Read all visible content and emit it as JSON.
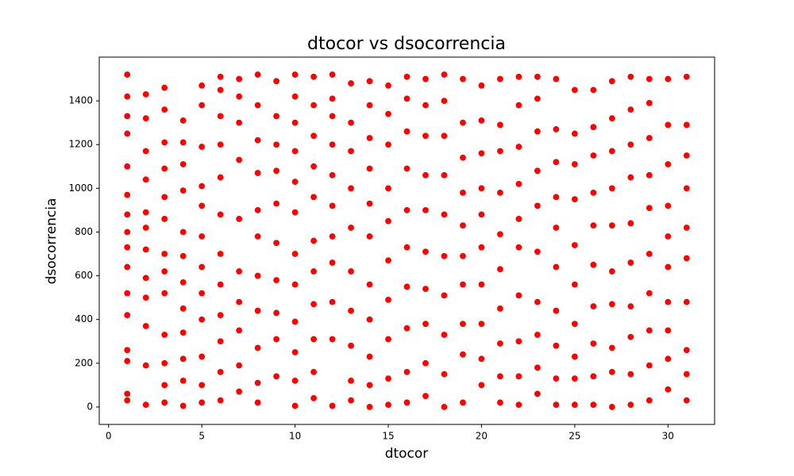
{
  "chart_data": {
    "type": "scatter",
    "title": "dtocor vs dsocorrencia",
    "x_label": "dtocor",
    "y_label": "dsocorrencia",
    "color": "#ff0000",
    "edgecolor": "#ffffff",
    "xlim": [
      -0.5,
      32.5
    ],
    "xticks": [
      0,
      5,
      10,
      15,
      20,
      25,
      30
    ],
    "ylim": [
      -80,
      1600
    ],
    "yticks": [
      0,
      200,
      400,
      600,
      800,
      1000,
      1200,
      1400
    ],
    "grid": false,
    "x": [
      1,
      1,
      1,
      1,
      1,
      1,
      1,
      1,
      1,
      1,
      1,
      1,
      1,
      1,
      1,
      1,
      2,
      2,
      2,
      2,
      2,
      2,
      2,
      2,
      2,
      2,
      2,
      2,
      3,
      3,
      3,
      3,
      3,
      3,
      3,
      3,
      3,
      3,
      3,
      3,
      3,
      4,
      4,
      4,
      4,
      4,
      4,
      4,
      4,
      4,
      4,
      4,
      4,
      5,
      5,
      5,
      5,
      5,
      5,
      5,
      5,
      5,
      5,
      5,
      5,
      6,
      6,
      6,
      6,
      6,
      6,
      6,
      6,
      6,
      6,
      6,
      6,
      7,
      7,
      7,
      7,
      7,
      7,
      7,
      7,
      7,
      7,
      8,
      8,
      8,
      8,
      8,
      8,
      8,
      8,
      8,
      8,
      8,
      9,
      9,
      9,
      9,
      9,
      9,
      9,
      9,
      9,
      9,
      10,
      10,
      10,
      10,
      10,
      10,
      10,
      10,
      10,
      10,
      10,
      10,
      11,
      11,
      11,
      11,
      11,
      11,
      11,
      11,
      11,
      11,
      11,
      12,
      12,
      12,
      12,
      12,
      12,
      12,
      12,
      12,
      12,
      12,
      13,
      13,
      13,
      13,
      13,
      13,
      13,
      13,
      13,
      13,
      14,
      14,
      14,
      14,
      14,
      14,
      14,
      14,
      14,
      14,
      14,
      15,
      15,
      15,
      15,
      15,
      15,
      15,
      15,
      15,
      15,
      16,
      16,
      16,
      16,
      16,
      16,
      16,
      16,
      16,
      16,
      17,
      17,
      17,
      17,
      17,
      17,
      17,
      17,
      17,
      17,
      18,
      18,
      18,
      18,
      18,
      18,
      18,
      18,
      18,
      18,
      19,
      19,
      19,
      19,
      19,
      19,
      19,
      19,
      19,
      19,
      20,
      20,
      20,
      20,
      20,
      20,
      20,
      20,
      20,
      20,
      21,
      21,
      21,
      21,
      21,
      21,
      21,
      21,
      21,
      21,
      22,
      22,
      22,
      22,
      22,
      22,
      22,
      22,
      22,
      22,
      23,
      23,
      23,
      23,
      23,
      23,
      23,
      23,
      23,
      23,
      24,
      24,
      24,
      24,
      24,
      24,
      24,
      24,
      24,
      24,
      25,
      25,
      25,
      25,
      25,
      25,
      25,
      25,
      25,
      25,
      26,
      26,
      26,
      26,
      26,
      26,
      26,
      26,
      26,
      26,
      27,
      27,
      27,
      27,
      27,
      27,
      27,
      27,
      27,
      27,
      28,
      28,
      28,
      28,
      28,
      28,
      28,
      28,
      28,
      28,
      29,
      29,
      29,
      29,
      29,
      29,
      29,
      29,
      29,
      29,
      30,
      30,
      30,
      30,
      30,
      30,
      30,
      30,
      30,
      30,
      31,
      31,
      31,
      31,
      31,
      31,
      31,
      31,
      31,
      31
    ],
    "y": [
      30,
      60,
      210,
      260,
      420,
      520,
      640,
      730,
      800,
      880,
      970,
      1100,
      1250,
      1330,
      1420,
      1520,
      10,
      190,
      370,
      500,
      590,
      720,
      820,
      890,
      1040,
      1170,
      1320,
      1430,
      20,
      100,
      200,
      330,
      520,
      620,
      700,
      860,
      960,
      1090,
      1210,
      1360,
      1460,
      5,
      120,
      220,
      340,
      450,
      570,
      690,
      800,
      990,
      1110,
      1210,
      1310,
      20,
      100,
      230,
      400,
      520,
      640,
      780,
      920,
      1010,
      1190,
      1380,
      1470,
      30,
      160,
      300,
      420,
      560,
      700,
      880,
      1050,
      1200,
      1330,
      1450,
      1510,
      70,
      190,
      350,
      480,
      620,
      860,
      1130,
      1300,
      1420,
      1500,
      20,
      110,
      270,
      440,
      600,
      780,
      900,
      1070,
      1220,
      1380,
      1520,
      140,
      310,
      430,
      580,
      750,
      930,
      1080,
      1200,
      1330,
      1490,
      5,
      120,
      250,
      390,
      560,
      700,
      890,
      1030,
      1170,
      1300,
      1420,
      1520,
      40,
      160,
      310,
      470,
      620,
      760,
      960,
      1100,
      1240,
      1380,
      1510,
      5,
      310,
      480,
      660,
      780,
      920,
      1060,
      1200,
      1330,
      1410,
      1520,
      30,
      120,
      280,
      440,
      620,
      820,
      1000,
      1170,
      1300,
      1480,
      0,
      100,
      230,
      400,
      560,
      780,
      930,
      1090,
      1230,
      1380,
      1490,
      10,
      130,
      310,
      490,
      670,
      850,
      1000,
      1200,
      1340,
      1470,
      20,
      160,
      360,
      550,
      730,
      900,
      1090,
      1260,
      1410,
      1510,
      50,
      200,
      380,
      540,
      710,
      900,
      1060,
      1240,
      1380,
      1500,
      0,
      150,
      330,
      510,
      690,
      880,
      1060,
      1240,
      1400,
      1520,
      20,
      240,
      380,
      560,
      690,
      830,
      980,
      1140,
      1300,
      1500,
      100,
      220,
      380,
      560,
      730,
      880,
      1000,
      1160,
      1310,
      1470,
      20,
      140,
      290,
      450,
      630,
      790,
      980,
      1170,
      1290,
      1500,
      10,
      140,
      300,
      510,
      730,
      860,
      1020,
      1190,
      1380,
      1510,
      60,
      180,
      330,
      480,
      710,
      920,
      1080,
      1260,
      1410,
      1510,
      10,
      130,
      280,
      440,
      640,
      820,
      960,
      1120,
      1270,
      1500,
      10,
      130,
      230,
      380,
      560,
      740,
      950,
      1110,
      1250,
      1450,
      10,
      140,
      290,
      460,
      650,
      830,
      980,
      1150,
      1280,
      1450,
      0,
      160,
      270,
      470,
      620,
      830,
      1000,
      1170,
      1320,
      1490,
      10,
      150,
      320,
      460,
      660,
      840,
      1050,
      1200,
      1360,
      1510,
      30,
      190,
      350,
      520,
      700,
      910,
      1060,
      1230,
      1390,
      1500,
      80,
      220,
      350,
      480,
      640,
      780,
      920,
      1110,
      1290,
      1500,
      30,
      150,
      260,
      480,
      680,
      820,
      1000,
      1150,
      1290,
      1510
    ]
  }
}
